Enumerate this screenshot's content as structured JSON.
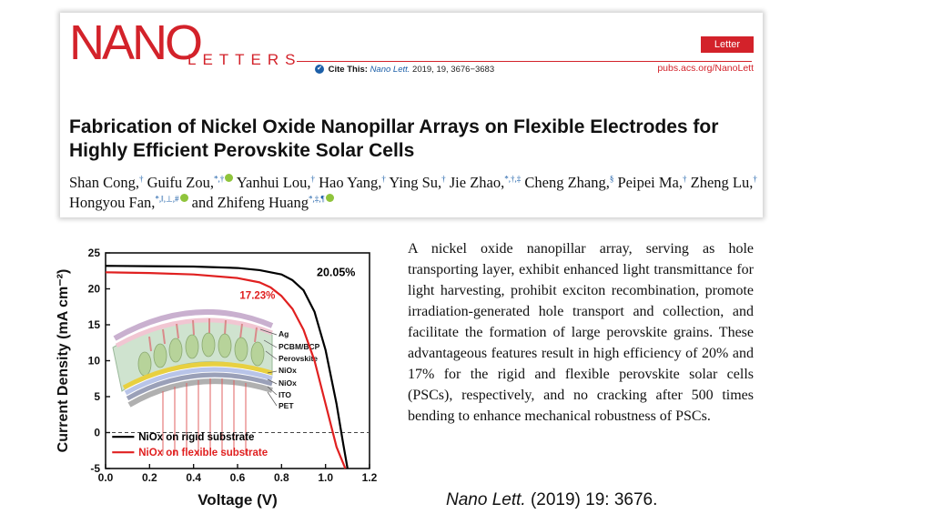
{
  "header": {
    "logo_main": "NANO",
    "logo_sub": "LETTERS",
    "badge": "Letter",
    "cite_label": "Cite This:",
    "cite_journal": "Nano Lett.",
    "cite_ref": "2019, 19, 3676−3683",
    "url": "pubs.acs.org/NanoLett",
    "title": "Fabrication of Nickel Oxide Nanopillar Arrays on Flexible Electrodes for Highly Efficient Perovskite Solar Cells",
    "authors": [
      {
        "name": "Shan Cong,",
        "marks": "†",
        "orcid": false
      },
      {
        "name": "Guifu Zou,",
        "marks": "*,†",
        "orcid": true
      },
      {
        "name": "Yanhui Lou,",
        "marks": "†",
        "orcid": false
      },
      {
        "name": "Hao Yang,",
        "marks": "†",
        "orcid": false
      },
      {
        "name": "Ying Su,",
        "marks": "†",
        "orcid": false
      },
      {
        "name": "Jie Zhao,",
        "marks": "*,†,‡",
        "orcid": false
      },
      {
        "name": "Cheng Zhang,",
        "marks": "§",
        "orcid": false
      },
      {
        "name": "Peipei Ma,",
        "marks": "†",
        "orcid": false
      },
      {
        "name": "Zheng Lu,",
        "marks": "†",
        "orcid": false
      },
      {
        "name": "Hongyou Fan,",
        "marks": "*,‖,⊥,#",
        "orcid": true
      },
      {
        "name": "and Zhifeng Huang",
        "marks": "*,‡,¶",
        "orcid": true
      }
    ]
  },
  "abstract": "A nickel oxide nanopillar array, serving as hole transporting layer, exhibit enhanced light transmittance for light harvesting, prohibit exciton recombination, promote irradiation-generated hole transport and collection, and facilitate the formation of large perovskite grains. These advantageous features result in high efficiency of 20% and 17% for the rigid and flexible perovskite solar cells (PSCs), respectively, and  no cracking after 500 times bending to enhance mechanical robustness of PSCs.",
  "citation": {
    "journal": "Nano Lett.",
    "rest": " (2019) 19: 3676."
  },
  "chart_data": {
    "type": "line",
    "xlabel": "Voltage (V)",
    "ylabel": "Current Density (mA cm⁻²)",
    "xlim": [
      0.0,
      1.2
    ],
    "ylim": [
      -5,
      25
    ],
    "x_ticks": [
      "0.0",
      "0.2",
      "0.4",
      "0.6",
      "0.8",
      "1.0",
      "1.2"
    ],
    "y_ticks": [
      "-5",
      "0",
      "5",
      "10",
      "15",
      "20",
      "25"
    ],
    "legend_placement": "bottom-left",
    "zero_line": "dashed",
    "series": [
      {
        "name": "NiOx on rigid substrate",
        "color": "#000000",
        "annotation": "20.05%",
        "x": [
          0.0,
          0.2,
          0.4,
          0.6,
          0.7,
          0.8,
          0.85,
          0.9,
          0.95,
          1.0,
          1.05,
          1.08,
          1.1
        ],
        "y": [
          23.2,
          23.15,
          23.1,
          22.9,
          22.6,
          22.0,
          21.2,
          19.8,
          16.8,
          11.5,
          4.0,
          -1.5,
          -5.0
        ]
      },
      {
        "name": "NiOx on flexible substrate",
        "color": "#e02020",
        "annotation": "17.23%",
        "x": [
          0.0,
          0.2,
          0.4,
          0.6,
          0.7,
          0.75,
          0.8,
          0.85,
          0.9,
          0.95,
          1.0,
          1.05,
          1.09
        ],
        "y": [
          22.3,
          22.2,
          22.0,
          21.5,
          20.9,
          20.2,
          19.0,
          17.2,
          14.3,
          10.0,
          4.0,
          -2.0,
          -5.0
        ]
      }
    ],
    "inset_layers": [
      "Ag",
      "PCBM/BCP",
      "Perovskite",
      "NiOx",
      "NiOx",
      "ITO",
      "PET"
    ]
  }
}
